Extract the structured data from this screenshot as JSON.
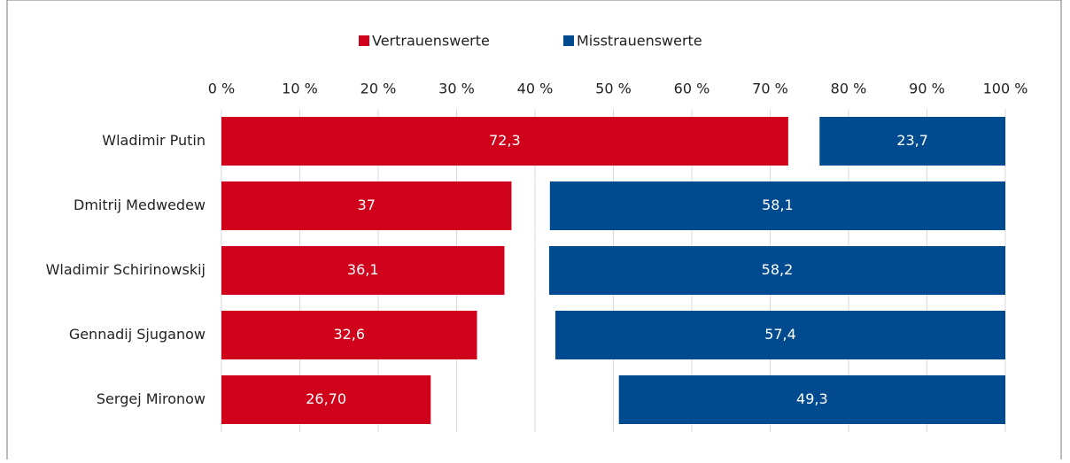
{
  "chart_data": {
    "type": "diverging-bar",
    "categories": [
      "Wladimir Putin",
      "Dmitrij Medwedew",
      "Wladimir Schirinowskij",
      "Gennadij Sjuganow",
      "Sergej Mironow"
    ],
    "series": [
      {
        "name": "Vertrauenswerte",
        "color": "#d0021b",
        "values": [
          72.3,
          37,
          36.1,
          32.6,
          26.7
        ],
        "value_labels": [
          "72,3",
          "37",
          "36,1",
          "32,6",
          "26,70"
        ]
      },
      {
        "name": "Misstrauenswerte",
        "color": "#004a8f",
        "values": [
          23.7,
          58.1,
          58.2,
          57.4,
          49.3
        ],
        "value_labels": [
          "23,7",
          "58,1",
          "58,2",
          "57,4",
          "49,3"
        ]
      }
    ],
    "xlim": [
      0,
      100
    ],
    "xticks": [
      {
        "value": 0,
        "label": "0 %"
      },
      {
        "value": 10,
        "label": "10 %"
      },
      {
        "value": 20,
        "label": "20 %"
      },
      {
        "value": 30,
        "label": "30 %"
      },
      {
        "value": 40,
        "label": "40 %"
      },
      {
        "value": 50,
        "label": "50 %"
      },
      {
        "value": 60,
        "label": "60 %"
      },
      {
        "value": 70,
        "label": "70 %"
      },
      {
        "value": 80,
        "label": "80 %"
      },
      {
        "value": 90,
        "label": "90 %"
      },
      {
        "value": 100,
        "label": "100 %"
      }
    ],
    "grid": true
  }
}
